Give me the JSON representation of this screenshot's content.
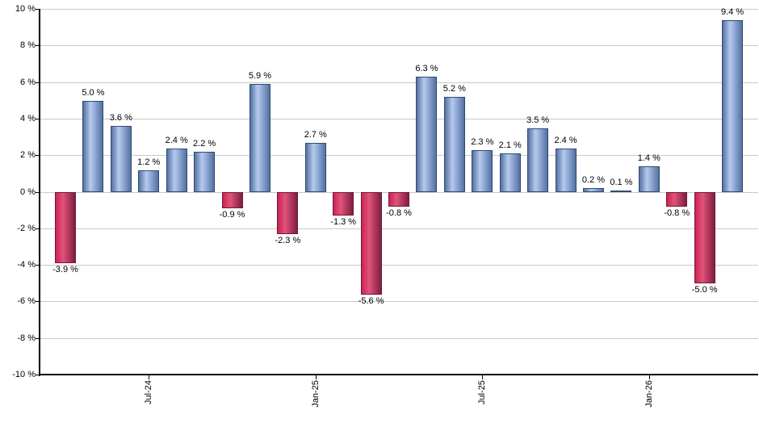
{
  "chart_data": {
    "type": "bar",
    "title": "",
    "xlabel": "",
    "ylabel": "",
    "ylim": [
      -10,
      10
    ],
    "grid": true,
    "legend": "none",
    "background": "#ffffff",
    "y_ticks": [
      {
        "value": 10,
        "label": "10 %"
      },
      {
        "value": 8,
        "label": "8 %"
      },
      {
        "value": 6,
        "label": "6 %"
      },
      {
        "value": 4,
        "label": "4 %"
      },
      {
        "value": 2,
        "label": "2 %"
      },
      {
        "value": 0,
        "label": "0 %"
      },
      {
        "value": -2,
        "label": "-2 %"
      },
      {
        "value": -4,
        "label": "-4 %"
      },
      {
        "value": -6,
        "label": "-6 %"
      },
      {
        "value": -8,
        "label": "-8 %"
      },
      {
        "value": -10,
        "label": "-10 %"
      }
    ],
    "x_ticks": [
      {
        "bar_index": 3,
        "label": "Jul-24"
      },
      {
        "bar_index": 9,
        "label": "Jan-25"
      },
      {
        "bar_index": 15,
        "label": "Jul-25"
      },
      {
        "bar_index": 21,
        "label": "Jan-26"
      }
    ],
    "bars": [
      {
        "value": -3.9,
        "label": "-3.9 %"
      },
      {
        "value": 5.0,
        "label": "5.0 %"
      },
      {
        "value": 3.6,
        "label": "3.6 %"
      },
      {
        "value": 1.2,
        "label": "1.2 %"
      },
      {
        "value": 2.4,
        "label": "2.4 %"
      },
      {
        "value": 2.2,
        "label": "2.2 %"
      },
      {
        "value": -0.9,
        "label": "-0.9 %"
      },
      {
        "value": 5.9,
        "label": "5.9 %"
      },
      {
        "value": -2.3,
        "label": "-2.3 %"
      },
      {
        "value": 2.7,
        "label": "2.7 %"
      },
      {
        "value": -1.3,
        "label": "-1.3 %"
      },
      {
        "value": -5.6,
        "label": "-5.6 %"
      },
      {
        "value": -0.8,
        "label": "-0.8 %"
      },
      {
        "value": 6.3,
        "label": "6.3 %"
      },
      {
        "value": 5.2,
        "label": "5.2 %"
      },
      {
        "value": 2.3,
        "label": "2.3 %"
      },
      {
        "value": 2.1,
        "label": "2.1 %"
      },
      {
        "value": 3.5,
        "label": "3.5 %"
      },
      {
        "value": 2.4,
        "label": "2.4 %"
      },
      {
        "value": 0.2,
        "label": "0.2 %"
      },
      {
        "value": 0.1,
        "label": "0.1 %"
      },
      {
        "value": 1.4,
        "label": "1.4 %"
      },
      {
        "value": -0.8,
        "label": "-0.8 %"
      },
      {
        "value": -5.0,
        "label": "-5.0 %"
      },
      {
        "value": 9.4,
        "label": "9.4 %"
      }
    ],
    "colors": {
      "positive_bar_edge": "#54719f",
      "positive_bar_highlight": "#b5caee",
      "positive_bar_mid": "#8fa8d4",
      "positive_bar_border": "#2f4a72",
      "negative_bar_edge": "#cb2452",
      "negative_bar_highlight": "#e0537a",
      "negative_bar_mid": "#b73a60",
      "negative_bar_dark_edge": "#7c1f40",
      "negative_bar_border": "#72173a",
      "gridline": "#c9c9c9",
      "axis": "#000000",
      "label_text": "#000000"
    }
  }
}
